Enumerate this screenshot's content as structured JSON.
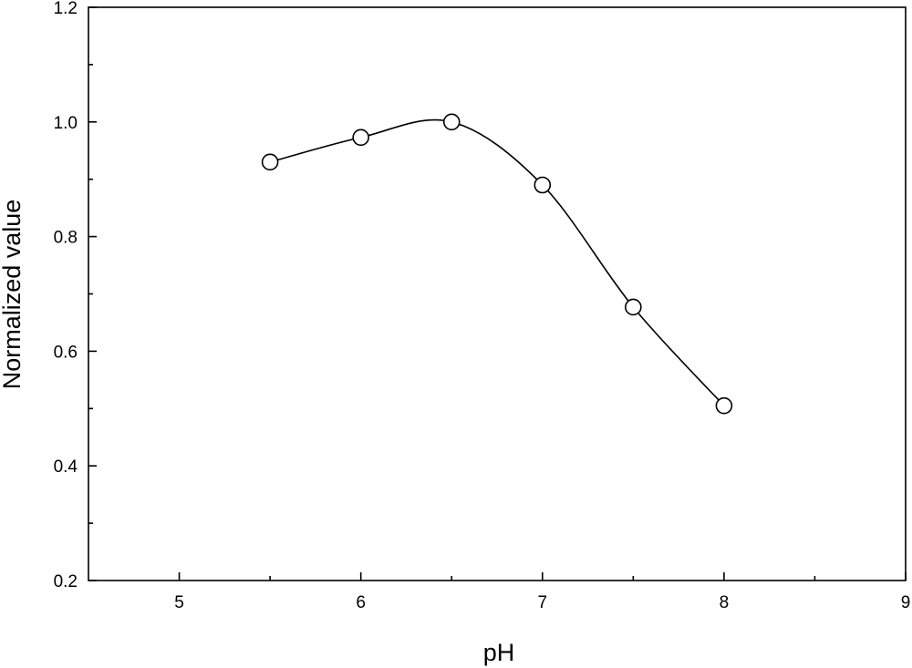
{
  "chart_data": {
    "type": "line",
    "title": "",
    "xlabel": "pH",
    "ylabel": "Normalized value",
    "xlim": [
      4.5,
      9
    ],
    "ylim": [
      0.2,
      1.2
    ],
    "x_ticks": [
      5,
      6,
      7,
      8,
      9
    ],
    "x_tick_labels": [
      "5",
      "6",
      "7",
      "8",
      "9"
    ],
    "x_minor_ticks": [
      5.5,
      6.5,
      7.5,
      8.5
    ],
    "y_ticks": [
      0.2,
      0.4,
      0.6,
      0.8,
      1.0,
      1.2
    ],
    "y_tick_labels": [
      "0.2",
      "0.4",
      "0.6",
      "0.8",
      "1.0",
      "1.2"
    ],
    "y_minor_ticks": [
      0.3,
      0.5,
      0.7,
      0.9,
      1.1
    ],
    "grid": false,
    "legend": "none",
    "marker": "open-circle",
    "line_style": "smooth",
    "series": [
      {
        "x": [
          5.5,
          6.0,
          6.5,
          7.0,
          7.5,
          8.0
        ],
        "values": [
          0.93,
          0.973,
          1.0,
          0.89,
          0.677,
          0.505
        ]
      }
    ]
  }
}
